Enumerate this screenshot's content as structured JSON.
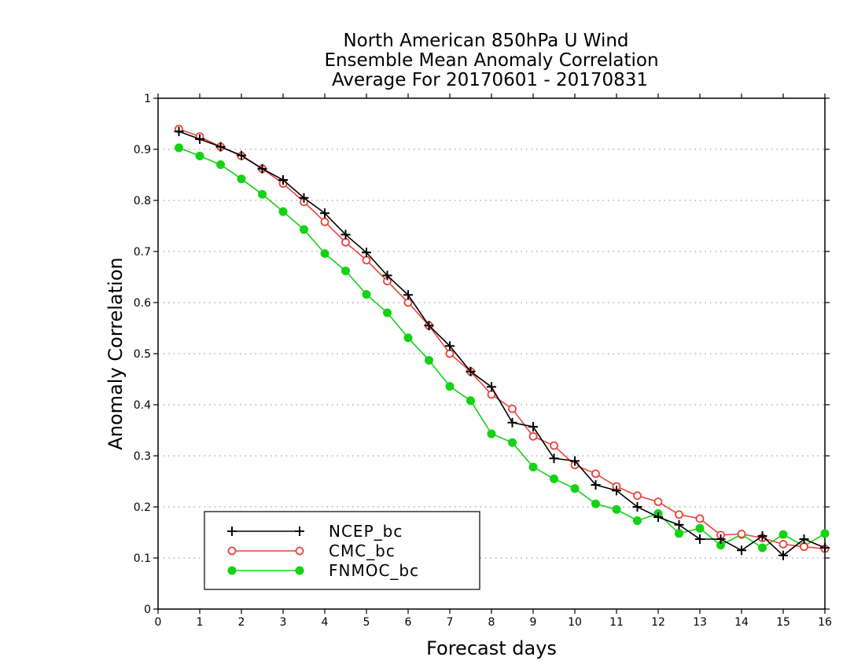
{
  "chart_data": {
    "type": "line",
    "title": [
      "North American 850hPa U Wind",
      "Ensemble Mean Anomaly Correlation",
      "Average For 20170601 - 20170831"
    ],
    "xlabel": "Forecast days",
    "ylabel": "Anomaly Correlation",
    "xlim": [
      0,
      16
    ],
    "ylim": [
      0,
      1
    ],
    "xticks": [
      "0",
      "1",
      "2",
      "3",
      "4",
      "5",
      "6",
      "7",
      "8",
      "9",
      "10",
      "11",
      "12",
      "13",
      "14",
      "15",
      "16"
    ],
    "yticks": [
      "0",
      "0.1",
      "0.2",
      "0.3",
      "0.4",
      "0.5",
      "0.6",
      "0.7",
      "0.8",
      "0.9",
      "1"
    ],
    "grid": "horizontal dotted",
    "legend_position": "bottom-left",
    "x": [
      0.5,
      1,
      1.5,
      2,
      2.5,
      3,
      3.5,
      4,
      4.5,
      5,
      5.5,
      6,
      6.5,
      7,
      7.5,
      8,
      8.5,
      9,
      9.5,
      10,
      10.5,
      11,
      11.5,
      12,
      12.5,
      13,
      13.5,
      14,
      14.5,
      15,
      15.5,
      16
    ],
    "series": [
      {
        "name": "NCEP_bc",
        "color": "#000000",
        "marker": "plus",
        "values": [
          0.935,
          0.92,
          0.905,
          0.888,
          0.862,
          0.84,
          0.805,
          0.775,
          0.733,
          0.698,
          0.653,
          0.615,
          0.555,
          0.515,
          0.465,
          0.435,
          0.365,
          0.357,
          0.295,
          0.29,
          0.243,
          0.232,
          0.2,
          0.18,
          0.165,
          0.137,
          0.137,
          0.115,
          0.143,
          0.105,
          0.137,
          0.12
        ]
      },
      {
        "name": "CMC_bc",
        "color": "#e8443c",
        "marker": "open-circle",
        "values": [
          0.94,
          0.925,
          0.905,
          0.887,
          0.862,
          0.833,
          0.797,
          0.758,
          0.718,
          0.683,
          0.642,
          0.6,
          0.555,
          0.5,
          0.465,
          0.42,
          0.392,
          0.338,
          0.32,
          0.282,
          0.265,
          0.24,
          0.222,
          0.21,
          0.185,
          0.177,
          0.145,
          0.147,
          0.139,
          0.127,
          0.122,
          0.118
        ]
      },
      {
        "name": "FNMOC_bc",
        "color": "#14d214",
        "marker": "filled-circle",
        "values": [
          0.903,
          0.887,
          0.87,
          0.842,
          0.812,
          0.778,
          0.743,
          0.696,
          0.662,
          0.616,
          0.58,
          0.531,
          0.487,
          0.436,
          0.408,
          0.343,
          0.326,
          0.278,
          0.255,
          0.236,
          0.206,
          0.195,
          0.173,
          0.187,
          0.148,
          0.158,
          0.125,
          0.146,
          0.12,
          0.146,
          0.123,
          0.148
        ]
      }
    ]
  }
}
